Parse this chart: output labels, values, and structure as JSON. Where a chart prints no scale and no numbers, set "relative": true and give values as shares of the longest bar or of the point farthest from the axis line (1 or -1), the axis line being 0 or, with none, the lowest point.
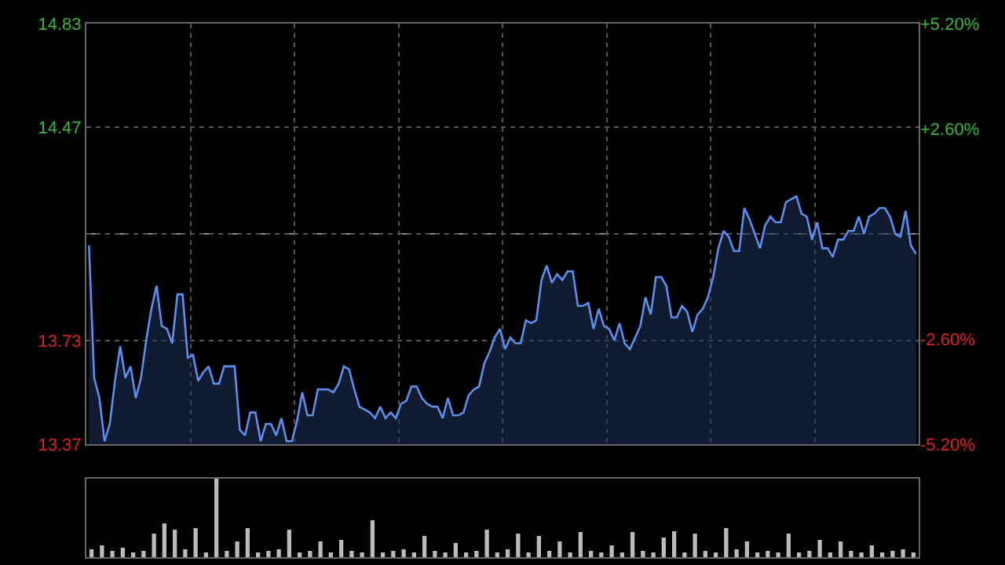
{
  "chart_data": [
    {
      "type": "area",
      "categories": [
        null,
        null,
        null,
        null,
        null,
        null,
        null,
        null,
        null,
        null,
        null,
        null,
        null,
        null,
        null,
        null,
        null,
        null,
        null,
        null,
        null,
        null,
        null,
        null,
        null,
        null,
        null,
        null,
        null,
        null,
        null,
        null,
        null,
        null,
        null,
        null,
        null,
        null,
        null,
        null,
        null,
        null,
        null,
        null,
        null,
        null,
        null,
        null,
        null,
        null,
        null,
        null,
        null,
        null,
        null,
        null,
        null,
        null,
        null,
        null,
        null,
        null,
        null,
        null,
        null,
        null,
        null,
        null,
        null,
        null,
        null,
        null,
        null,
        null,
        null,
        null,
        null,
        null,
        null,
        null,
        null,
        null,
        null,
        null,
        null,
        null,
        null,
        null,
        null,
        null,
        null,
        null,
        null,
        null,
        null,
        null,
        null,
        null,
        null,
        null,
        null,
        null,
        null,
        null,
        null,
        null,
        null,
        null,
        null,
        null,
        null,
        null,
        null,
        null,
        null,
        null,
        null,
        null,
        null,
        null,
        null,
        null,
        null,
        null,
        null,
        null,
        null,
        null,
        null,
        null,
        null,
        null,
        null,
        null,
        null,
        null,
        null,
        null,
        null,
        null,
        null,
        null,
        null,
        null,
        null,
        null,
        null,
        null,
        null,
        null,
        null,
        null,
        null,
        null,
        null,
        null,
        null,
        null,
        null,
        null
      ],
      "series": [
        {
          "color": "#5b8ff0",
          "values": [
            14.06,
            13.6,
            13.53,
            13.38,
            13.44,
            13.59,
            13.71,
            13.6,
            13.64,
            13.53,
            13.6,
            13.73,
            13.84,
            13.92,
            13.78,
            13.77,
            13.72,
            13.89,
            13.89,
            13.67,
            13.68,
            13.59,
            13.62,
            13.64,
            13.58,
            13.58,
            13.64,
            13.64,
            13.64,
            13.42,
            13.4,
            13.48,
            13.48,
            13.38,
            13.44,
            13.44,
            13.4,
            13.46,
            13.38,
            13.38,
            13.45,
            13.55,
            13.47,
            13.47,
            13.56,
            13.56,
            13.56,
            13.55,
            13.58,
            13.64,
            13.63,
            13.56,
            13.5,
            13.49,
            13.48,
            13.46,
            13.5,
            13.46,
            13.48,
            13.46,
            13.51,
            13.52,
            13.57,
            13.57,
            13.53,
            13.51,
            13.5,
            13.5,
            13.46,
            13.53,
            13.47,
            13.47,
            13.48,
            13.54,
            13.56,
            13.57,
            13.65,
            13.69,
            13.74,
            13.77,
            13.7,
            13.74,
            13.72,
            13.72,
            13.8,
            13.79,
            13.8,
            13.94,
            13.99,
            13.93,
            13.96,
            13.94,
            13.97,
            13.97,
            13.85,
            13.85,
            13.86,
            13.77,
            13.84,
            13.78,
            13.77,
            13.73,
            13.79,
            13.72,
            13.7,
            13.74,
            13.78,
            13.88,
            13.82,
            13.95,
            13.95,
            13.92,
            13.81,
            13.81,
            13.85,
            13.83,
            13.76,
            13.82,
            13.84,
            13.88,
            13.95,
            14.05,
            14.11,
            14.09,
            14.04,
            14.04,
            14.19,
            14.15,
            14.1,
            14.05,
            14.13,
            14.16,
            14.14,
            14.14,
            14.21,
            14.22,
            14.23,
            14.17,
            14.16,
            14.08,
            14.14,
            14.05,
            14.05,
            14.02,
            14.08,
            14.08,
            14.11,
            14.11,
            14.16,
            14.1,
            14.16,
            14.17,
            14.19,
            14.19,
            14.16,
            14.1,
            14.09,
            14.18,
            14.06,
            14.03
          ]
        }
      ],
      "ylim": [
        13.37,
        14.83
      ],
      "yticks": [
        14.83,
        14.47,
        {
          "value": 14.1,
          "label": null
        },
        13.73,
        13.37
      ],
      "y2lim": [
        -5.2,
        5.2
      ],
      "y2ticks": [
        {
          "value": 5.2,
          "label": "+5.20%"
        },
        {
          "value": 2.6,
          "label": "+2.60%"
        },
        {
          "value": 0,
          "label": null
        },
        {
          "value": -2.6,
          "label": "-2.60%"
        },
        {
          "value": -5.2,
          "label": "-5.20%"
        }
      ],
      "ref_lines": [
        {
          "axis": "y",
          "value": 14.1,
          "color": "#888888",
          "line_style": "dashed"
        }
      ],
      "grid": true
    },
    {
      "type": "bar",
      "relative": true,
      "color": "#bbbbbb",
      "categories": [
        null,
        null,
        null,
        null,
        null,
        null,
        null,
        null,
        null,
        null,
        null,
        null,
        null,
        null,
        null,
        null,
        null,
        null,
        null,
        null,
        null,
        null,
        null,
        null,
        null,
        null,
        null,
        null,
        null,
        null,
        null,
        null,
        null,
        null,
        null,
        null,
        null,
        null,
        null,
        null,
        null,
        null,
        null,
        null,
        null,
        null,
        null,
        null,
        null,
        null,
        null,
        null,
        null,
        null,
        null,
        null,
        null,
        null,
        null,
        null,
        null,
        null,
        null,
        null,
        null,
        null,
        null,
        null,
        null,
        null,
        null,
        null,
        null,
        null,
        null,
        null,
        null,
        null,
        null,
        null
      ],
      "values": [
        0.1,
        0.15,
        0.08,
        0.12,
        0.06,
        0.08,
        0.3,
        0.43,
        0.35,
        0.1,
        0.37,
        0.06,
        1,
        0.08,
        0.2,
        0.37,
        0.06,
        0.08,
        0.1,
        0.35,
        0.06,
        0.08,
        0.2,
        0.06,
        0.22,
        0.08,
        0.06,
        0.47,
        0.06,
        0.08,
        0.1,
        0.06,
        0.27,
        0.08,
        0.06,
        0.18,
        0.06,
        0.08,
        0.35,
        0.06,
        0.1,
        0.3,
        0.06,
        0.27,
        0.08,
        0.2,
        0.06,
        0.32,
        0.08,
        0.06,
        0.15,
        0.06,
        0.32,
        0.08,
        0.06,
        0.25,
        0.33,
        0.06,
        0.3,
        0.08,
        0.06,
        0.37,
        0.1,
        0.2,
        0.06,
        0.08,
        0.06,
        0.3,
        0.06,
        0.08,
        0.22,
        0.06,
        0.2,
        0.08,
        0.06,
        0.15,
        0.06,
        0.08,
        0.1,
        0.06
      ]
    }
  ]
}
